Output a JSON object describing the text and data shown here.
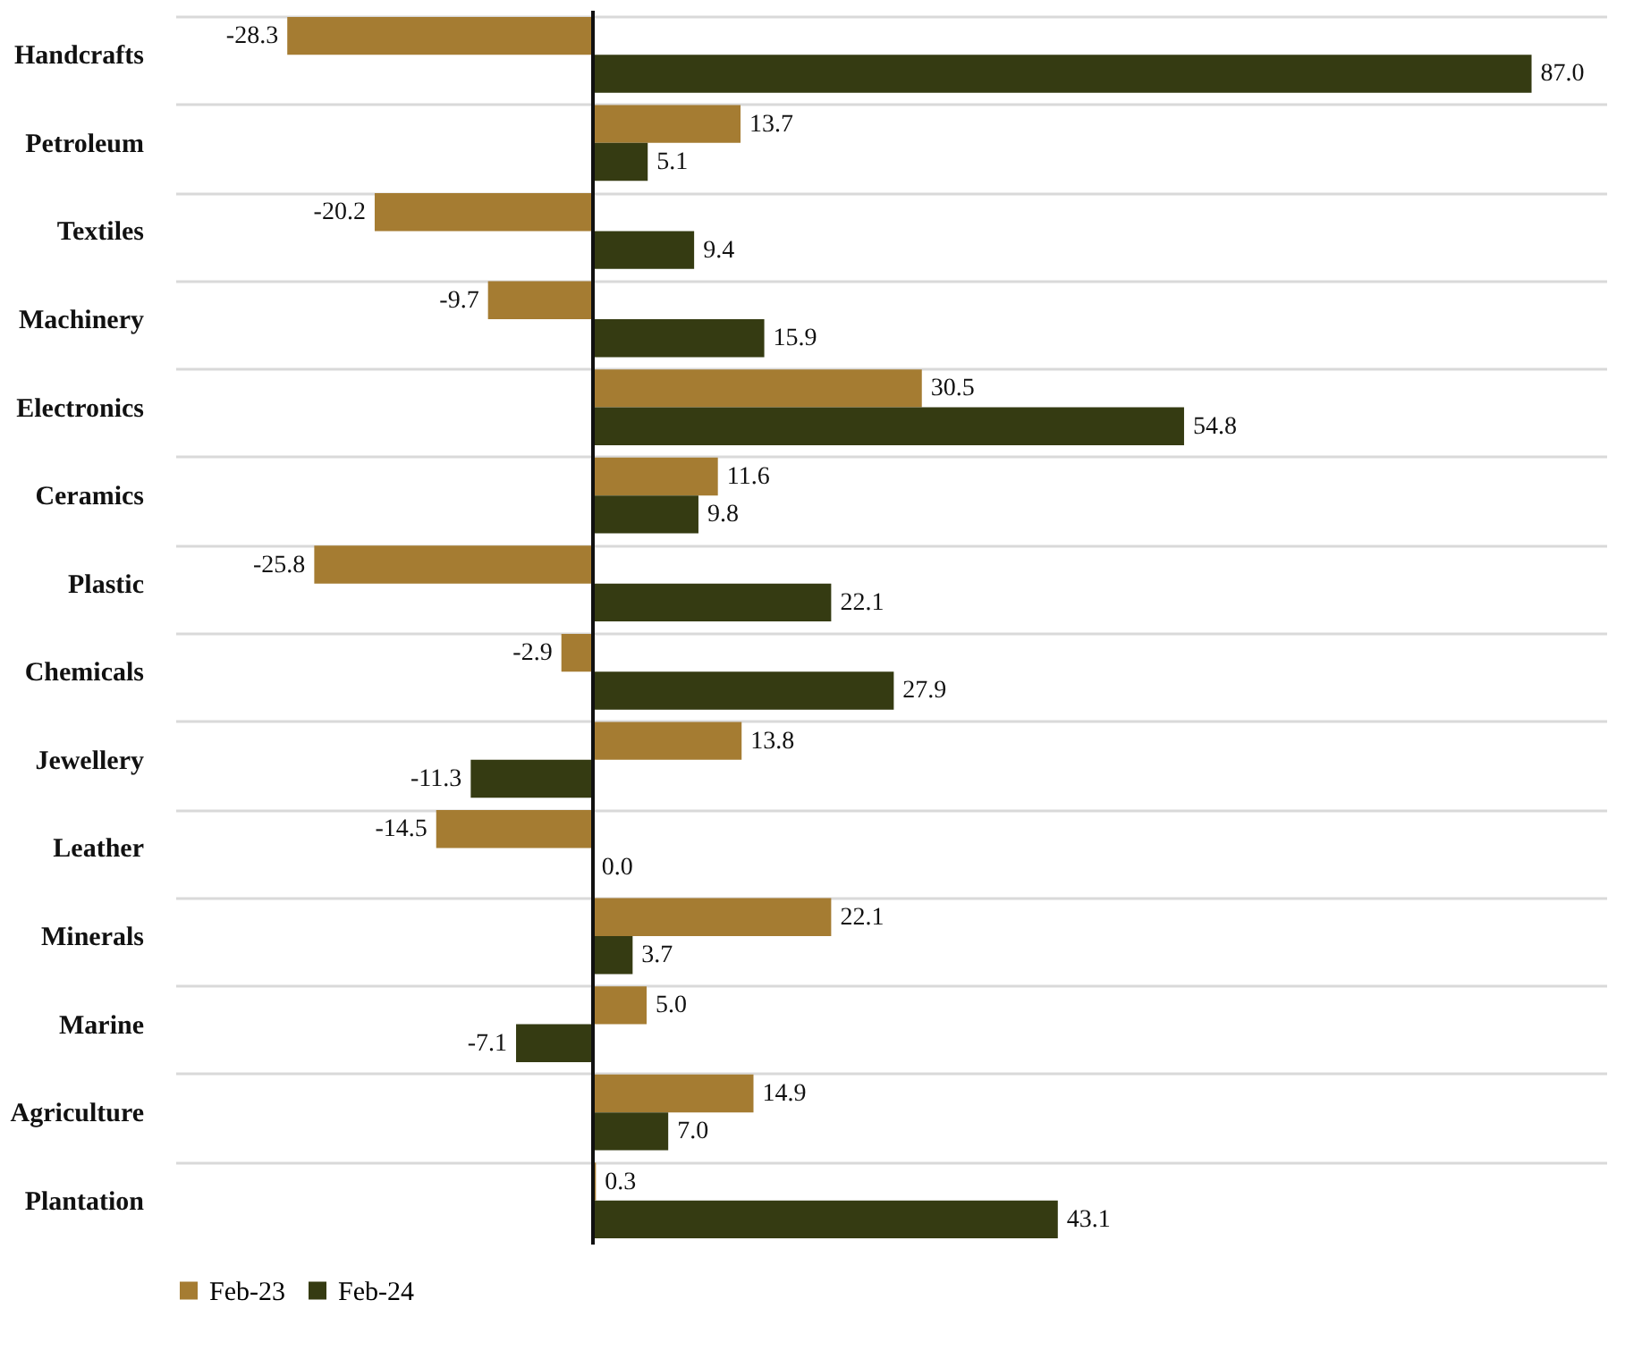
{
  "chart_data": {
    "type": "bar",
    "orientation": "horizontal",
    "categories": [
      "Handcrafts",
      "Petroleum",
      "Textiles",
      "Machinery",
      "Electronics",
      "Ceramics",
      "Plastic",
      "Chemicals",
      "Jewellery",
      "Leather",
      "Minerals",
      "Marine",
      "Agriculture",
      "Plantation"
    ],
    "series": [
      {
        "name": "Feb-23",
        "color": "#a57c32",
        "values": [
          -28.3,
          13.7,
          -20.2,
          -9.7,
          30.5,
          11.6,
          -25.8,
          -2.9,
          13.8,
          -14.5,
          22.1,
          5.0,
          14.9,
          0.3
        ],
        "value_labels": [
          "-28.3",
          "13.7",
          "-20.2",
          "-9.7",
          "30.5",
          "11.6",
          "-25.8",
          "-2.9",
          "13.8",
          "-14.5",
          "22.1",
          "5.0",
          "14.9",
          "0.3"
        ]
      },
      {
        "name": "Feb-24",
        "color": "#353b12",
        "values": [
          87.0,
          5.1,
          9.4,
          15.9,
          54.8,
          9.8,
          22.1,
          27.9,
          -11.3,
          0.0,
          3.7,
          -7.1,
          7.0,
          43.1
        ],
        "value_labels": [
          "87.0",
          "5.1",
          "9.4",
          "15.9",
          "54.8",
          "9.8",
          "22.1",
          "27.9",
          "-11.3",
          "0.0",
          "3.7",
          "-7.1",
          "7.0",
          "43.1"
        ]
      }
    ],
    "grid": "y",
    "legend": "bottom"
  }
}
